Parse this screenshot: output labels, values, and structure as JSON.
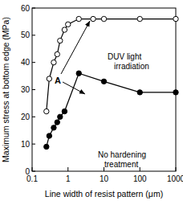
{
  "chart_data": {
    "type": "scatter",
    "x_label": "Line width of resist pattern (μm)",
    "y_label": "Maximum stress at bottom edge (MPa)",
    "annotation": "A",
    "log": "x",
    "xlim": [
      0.1,
      1000
    ],
    "xticks": [
      0.1,
      1,
      10,
      100,
      1000
    ],
    "ylim": [
      0,
      60
    ],
    "yticks": [
      0,
      10,
      20,
      30,
      40,
      50,
      60
    ],
    "grid": false,
    "series": [
      {
        "name": "DUV light irradiation",
        "color": "#000000",
        "marker": "open",
        "line_style": "solid",
        "x": [
          0.25,
          0.3,
          0.4,
          0.5,
          0.6,
          0.8,
          1,
          2,
          5,
          10,
          100,
          1000
        ],
        "values": [
          22,
          34,
          40,
          43,
          48,
          52,
          54,
          56,
          56,
          56,
          56,
          56
        ]
      },
      {
        "name": "No hardening treatment",
        "color": "#000000",
        "marker": "filled",
        "line_style": "solid",
        "x": [
          0.25,
          0.3,
          0.4,
          0.5,
          0.6,
          0.8,
          2,
          10,
          100,
          1000
        ],
        "values": [
          9,
          13,
          16,
          18,
          20,
          22,
          36,
          33,
          29,
          29
        ]
      }
    ]
  }
}
